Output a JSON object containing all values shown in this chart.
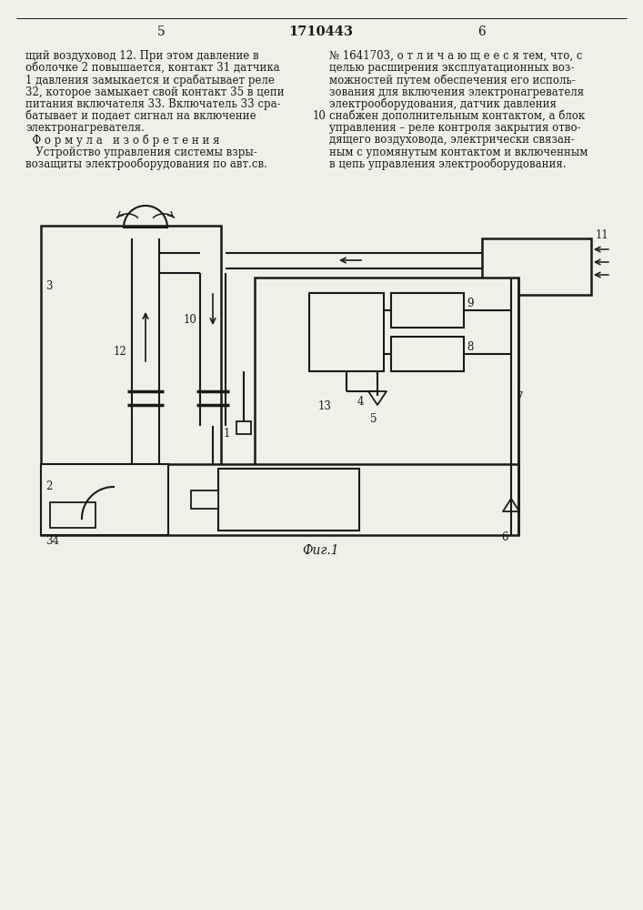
{
  "page_width": 7.07,
  "page_height": 10.0,
  "bg_color": "#f0efe8",
  "text_color": "#1a1a1a",
  "line_color": "#1a1a1a",
  "header_number_left": "5",
  "header_title": "1710443",
  "header_number_right": "6",
  "fig_caption": "Фиг.1",
  "col_left": [
    "щий воздуховод 12. При этом давление в",
    "оболочке 2 повышается, контакт 31 датчика",
    "1 давления замыкается и срабатывает реле",
    "32, которое замыкает свой контакт 35 в цепи",
    "питания включателя 33. Включатель 33 сра-",
    "батывает и подает сигнал на включение",
    "электронагревателя.",
    "Ф о р м у л а   и з о б р е т е н и я",
    "   Устройство управления системы взры-",
    "возащиты электрооборудования по авт.св."
  ],
  "col_right": [
    "№ 1641703, о т л и ч а ю щ е е с я тем, что, с",
    "целью расширения эксплуатационных воз-",
    "можностей путем обеспечения его исполь-",
    "зования для включения электронагревателя",
    "электрооборудования, датчик давления",
    "снабжен дополнительным контактом, а блок",
    "управления – реле контроля закрытия отво-",
    "дящего воздуховода, электрически связан-",
    "ным с упомянутым контактом и включенным",
    "в цепь управления электрооборудования."
  ],
  "line_num": "10"
}
